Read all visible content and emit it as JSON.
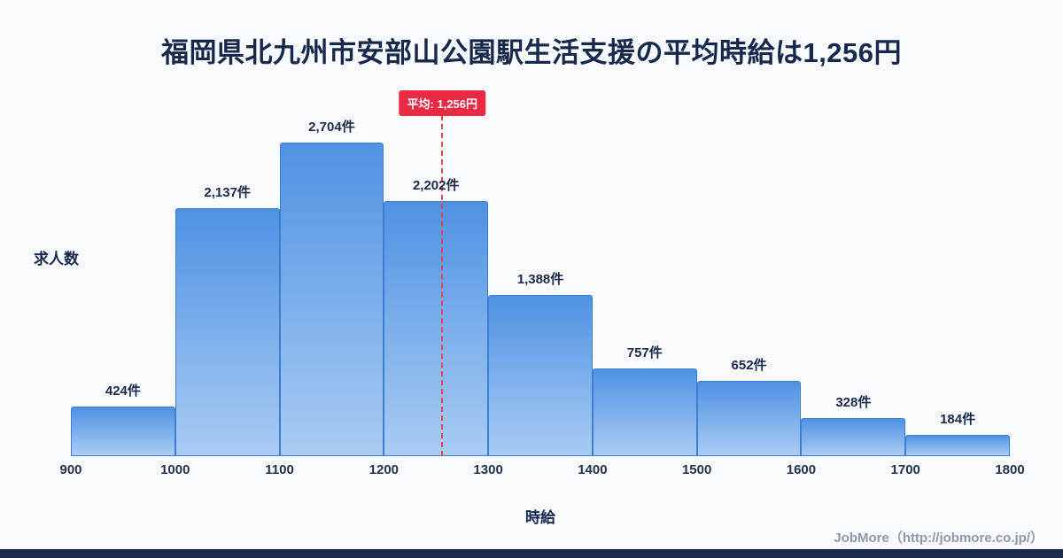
{
  "title": "福岡県北九州市安部山公園駅生活支援の平均時給は1,256円",
  "chart_data": {
    "type": "bar",
    "subtype": "histogram",
    "bin_edges": [
      900,
      1000,
      1100,
      1200,
      1300,
      1400,
      1500,
      1600,
      1700,
      1800
    ],
    "values": [
      424,
      2137,
      2704,
      2202,
      1388,
      757,
      652,
      328,
      184
    ],
    "bar_labels": [
      "424件",
      "2,137件",
      "2,704件",
      "2,202件",
      "1,388件",
      "757件",
      "652件",
      "328件",
      "184件"
    ],
    "x_ticks": [
      "900",
      "1000",
      "1100",
      "1200",
      "1300",
      "1400",
      "1500",
      "1600",
      "1700",
      "1800"
    ],
    "xlim": [
      900,
      1800
    ],
    "xlabel": "時給",
    "ylabel": "求人数",
    "average": 1256,
    "average_label": "平均: 1,256円",
    "grid": false,
    "legend": false
  },
  "footer": {
    "credit": "JobMore（http://jobmore.co.jp/）"
  },
  "colors": {
    "background": "#f8fafd",
    "title": "#16294d",
    "bar_gradient_top": "#4f92e3",
    "bar_gradient_bottom": "#a9ccf3",
    "bar_border": "#3c7ed2",
    "average_line": "#e0484f",
    "badge_background": "#ea2a42",
    "badge_text": "#ffffff",
    "footer_text": "#8e99a8",
    "bottom_bar": "#1b2b4d"
  }
}
